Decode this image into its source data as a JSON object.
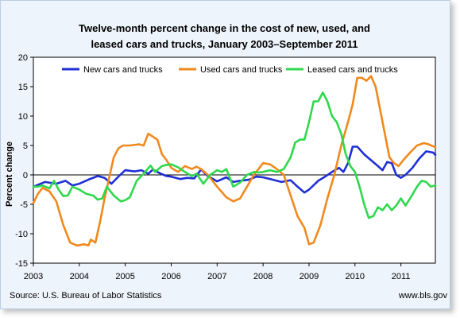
{
  "chart_data": {
    "type": "line",
    "title_lines": [
      "Twelve-month percent change in the cost of new, used, and",
      "leased cars and trucks, January 2003–September 2011"
    ],
    "ylabel": "Percent change",
    "xlabel": "",
    "ylim": [
      -15,
      20
    ],
    "yticks": [
      "20",
      "15",
      "10",
      "5",
      "0",
      "-5",
      "-10",
      "-15"
    ],
    "ytick_values": [
      20,
      15,
      10,
      5,
      0,
      -5,
      -10,
      -15
    ],
    "xlim": [
      2003,
      2011.75
    ],
    "xticks": [
      "2003",
      "2004",
      "2005",
      "2006",
      "2007",
      "2008",
      "2009",
      "2010",
      "2011"
    ],
    "xtick_values": [
      2003,
      2004,
      2005,
      2006,
      2007,
      2008,
      2009,
      2010,
      2011
    ],
    "legend_position": "top",
    "grid": "none",
    "series": [
      {
        "name": "New cars and trucks",
        "color": "#1f2fd6",
        "points": [
          [
            2003.0,
            -2.0
          ],
          [
            2003.25,
            -1.2
          ],
          [
            2003.5,
            -1.5
          ],
          [
            2003.7,
            -1.0
          ],
          [
            2003.85,
            -1.8
          ],
          [
            2004.0,
            -1.5
          ],
          [
            2004.2,
            -0.8
          ],
          [
            2004.4,
            -0.2
          ],
          [
            2004.55,
            -0.5
          ],
          [
            2004.7,
            -1.5
          ],
          [
            2004.85,
            -0.3
          ],
          [
            2005.0,
            0.8
          ],
          [
            2005.2,
            0.6
          ],
          [
            2005.35,
            0.8
          ],
          [
            2005.5,
            0.2
          ],
          [
            2005.6,
            0.9
          ],
          [
            2005.75,
            0.3
          ],
          [
            2005.9,
            -0.2
          ],
          [
            2006.0,
            -0.3
          ],
          [
            2006.2,
            -0.7
          ],
          [
            2006.35,
            -0.5
          ],
          [
            2006.5,
            -0.6
          ],
          [
            2006.65,
            0.9
          ],
          [
            2006.8,
            -0.2
          ],
          [
            2007.0,
            -1.1
          ],
          [
            2007.2,
            -0.4
          ],
          [
            2007.35,
            -1.2
          ],
          [
            2007.5,
            -1.0
          ],
          [
            2007.7,
            -0.8
          ],
          [
            2007.85,
            -0.3
          ],
          [
            2008.0,
            -0.4
          ],
          [
            2008.2,
            -0.8
          ],
          [
            2008.4,
            -1.2
          ],
          [
            2008.6,
            -0.9
          ],
          [
            2008.75,
            -2.0
          ],
          [
            2008.9,
            -3.0
          ],
          [
            2009.0,
            -2.5
          ],
          [
            2009.2,
            -1.0
          ],
          [
            2009.35,
            -0.3
          ],
          [
            2009.5,
            0.5
          ],
          [
            2009.65,
            1.2
          ],
          [
            2009.75,
            0.5
          ],
          [
            2009.85,
            2.0
          ],
          [
            2009.95,
            4.8
          ],
          [
            2010.05,
            4.8
          ],
          [
            2010.2,
            3.5
          ],
          [
            2010.35,
            2.5
          ],
          [
            2010.5,
            1.5
          ],
          [
            2010.6,
            0.8
          ],
          [
            2010.7,
            2.2
          ],
          [
            2010.8,
            2.0
          ],
          [
            2010.9,
            0.0
          ],
          [
            2011.0,
            -0.5
          ],
          [
            2011.1,
            0.0
          ],
          [
            2011.25,
            1.2
          ],
          [
            2011.4,
            2.8
          ],
          [
            2011.55,
            4.0
          ],
          [
            2011.7,
            3.8
          ],
          [
            2011.75,
            3.4
          ]
        ]
      },
      {
        "name": "Used cars and trucks",
        "color": "#f0891d",
        "points": [
          [
            2003.0,
            -4.8
          ],
          [
            2003.1,
            -3.2
          ],
          [
            2003.2,
            -2.2
          ],
          [
            2003.35,
            -2.8
          ],
          [
            2003.5,
            -4.5
          ],
          [
            2003.65,
            -8.5
          ],
          [
            2003.8,
            -11.5
          ],
          [
            2003.95,
            -12.0
          ],
          [
            2004.1,
            -11.8
          ],
          [
            2004.2,
            -12.0
          ],
          [
            2004.25,
            -11.0
          ],
          [
            2004.35,
            -11.5
          ],
          [
            2004.45,
            -8.0
          ],
          [
            2004.55,
            -4.0
          ],
          [
            2004.65,
            -0.5
          ],
          [
            2004.75,
            3.0
          ],
          [
            2004.85,
            4.5
          ],
          [
            2004.95,
            5.0
          ],
          [
            2005.1,
            5.0
          ],
          [
            2005.3,
            5.2
          ],
          [
            2005.4,
            5.0
          ],
          [
            2005.5,
            7.0
          ],
          [
            2005.6,
            6.5
          ],
          [
            2005.7,
            6.0
          ],
          [
            2005.8,
            3.5
          ],
          [
            2005.9,
            2.5
          ],
          [
            2006.0,
            1.2
          ],
          [
            2006.15,
            0.5
          ],
          [
            2006.3,
            1.5
          ],
          [
            2006.45,
            1.0
          ],
          [
            2006.55,
            1.4
          ],
          [
            2006.65,
            1.0
          ],
          [
            2006.8,
            0.0
          ],
          [
            2006.9,
            -1.0
          ],
          [
            2007.0,
            -2.0
          ],
          [
            2007.2,
            -3.8
          ],
          [
            2007.35,
            -4.5
          ],
          [
            2007.5,
            -4.0
          ],
          [
            2007.65,
            -2.0
          ],
          [
            2007.8,
            0.0
          ],
          [
            2007.9,
            1.0
          ],
          [
            2008.0,
            2.0
          ],
          [
            2008.15,
            1.8
          ],
          [
            2008.3,
            1.0
          ],
          [
            2008.45,
            0.0
          ],
          [
            2008.6,
            -3.5
          ],
          [
            2008.75,
            -7.0
          ],
          [
            2008.9,
            -9.0
          ],
          [
            2009.0,
            -11.8
          ],
          [
            2009.1,
            -11.5
          ],
          [
            2009.25,
            -8.5
          ],
          [
            2009.4,
            -4.0
          ],
          [
            2009.55,
            0.0
          ],
          [
            2009.7,
            5.0
          ],
          [
            2009.85,
            9.0
          ],
          [
            2009.95,
            12.0
          ],
          [
            2010.05,
            16.5
          ],
          [
            2010.15,
            16.5
          ],
          [
            2010.25,
            16.0
          ],
          [
            2010.35,
            16.8
          ],
          [
            2010.45,
            15.0
          ],
          [
            2010.55,
            11.0
          ],
          [
            2010.65,
            7.0
          ],
          [
            2010.75,
            3.0
          ],
          [
            2010.85,
            2.0
          ],
          [
            2010.95,
            1.5
          ],
          [
            2011.05,
            2.5
          ],
          [
            2011.2,
            3.8
          ],
          [
            2011.35,
            5.0
          ],
          [
            2011.5,
            5.4
          ],
          [
            2011.6,
            5.2
          ],
          [
            2011.75,
            4.7
          ]
        ]
      },
      {
        "name": "Leased cars and trucks",
        "color": "#2fd84c",
        "points": [
          [
            2003.0,
            -2.0
          ],
          [
            2003.1,
            -2.0
          ],
          [
            2003.2,
            -1.8
          ],
          [
            2003.35,
            -2.3
          ],
          [
            2003.45,
            -1.0
          ],
          [
            2003.55,
            -2.5
          ],
          [
            2003.65,
            -3.6
          ],
          [
            2003.75,
            -3.5
          ],
          [
            2003.85,
            -2.0
          ],
          [
            2004.0,
            -2.5
          ],
          [
            2004.15,
            -3.2
          ],
          [
            2004.3,
            -3.5
          ],
          [
            2004.4,
            -4.2
          ],
          [
            2004.5,
            -4.0
          ],
          [
            2004.6,
            -2.0
          ],
          [
            2004.75,
            -3.5
          ],
          [
            2004.9,
            -4.5
          ],
          [
            2005.0,
            -4.3
          ],
          [
            2005.1,
            -3.8
          ],
          [
            2005.25,
            -1.0
          ],
          [
            2005.4,
            0.2
          ],
          [
            2005.55,
            1.6
          ],
          [
            2005.65,
            0.5
          ],
          [
            2005.8,
            1.5
          ],
          [
            2005.9,
            1.7
          ],
          [
            2006.0,
            1.8
          ],
          [
            2006.15,
            1.3
          ],
          [
            2006.3,
            0.5
          ],
          [
            2006.45,
            -0.2
          ],
          [
            2006.55,
            0.2
          ],
          [
            2006.7,
            -1.5
          ],
          [
            2006.85,
            0.0
          ],
          [
            2007.0,
            0.8
          ],
          [
            2007.1,
            0.5
          ],
          [
            2007.2,
            1.0
          ],
          [
            2007.35,
            -2.0
          ],
          [
            2007.5,
            -1.3
          ],
          [
            2007.65,
            0.0
          ],
          [
            2007.8,
            0.5
          ],
          [
            2007.9,
            0.4
          ],
          [
            2008.0,
            0.5
          ],
          [
            2008.15,
            0.8
          ],
          [
            2008.3,
            0.5
          ],
          [
            2008.45,
            1.0
          ],
          [
            2008.6,
            3.0
          ],
          [
            2008.7,
            5.5
          ],
          [
            2008.8,
            6.0
          ],
          [
            2008.9,
            6.0
          ],
          [
            2009.0,
            9.0
          ],
          [
            2009.1,
            12.5
          ],
          [
            2009.2,
            12.5
          ],
          [
            2009.3,
            14.0
          ],
          [
            2009.4,
            12.5
          ],
          [
            2009.5,
            10.0
          ],
          [
            2009.6,
            9.0
          ],
          [
            2009.7,
            7.0
          ],
          [
            2009.8,
            3.5
          ],
          [
            2009.9,
            1.5
          ],
          [
            2010.0,
            0.5
          ],
          [
            2010.1,
            -2.0
          ],
          [
            2010.2,
            -5.0
          ],
          [
            2010.3,
            -7.3
          ],
          [
            2010.4,
            -7.0
          ],
          [
            2010.5,
            -5.5
          ],
          [
            2010.6,
            -6.0
          ],
          [
            2010.7,
            -5.0
          ],
          [
            2010.8,
            -6.0
          ],
          [
            2010.9,
            -5.2
          ],
          [
            2011.0,
            -4.0
          ],
          [
            2011.1,
            -5.2
          ],
          [
            2011.2,
            -4.0
          ],
          [
            2011.35,
            -2.0
          ],
          [
            2011.45,
            -1.0
          ],
          [
            2011.55,
            -1.2
          ],
          [
            2011.65,
            -2.0
          ],
          [
            2011.75,
            -1.8
          ]
        ]
      }
    ]
  },
  "source_text": "Source: U.S. Bureau of Labor Statistics",
  "site_text": "www.bls.gov",
  "colors": {
    "panel_bg": "#eef4fb",
    "panel_border": "#b9cde3"
  }
}
